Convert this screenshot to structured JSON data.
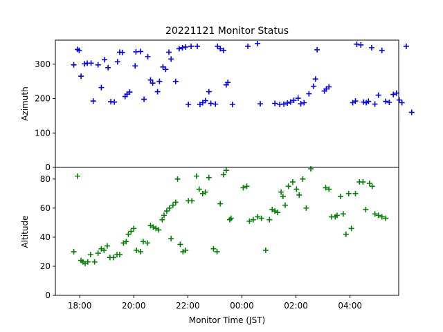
{
  "chart_data": {
    "type": "scatter",
    "title": "20221121 Monitor Status",
    "xlabel": "Monitor Time (JST)",
    "x_unit": "hours (JST, values past 24 are next day)",
    "xlim": [
      17.1,
      29.8
    ],
    "x_ticks": [
      {
        "value": 18,
        "label": "18:00"
      },
      {
        "value": 20,
        "label": "20:00"
      },
      {
        "value": 22,
        "label": "22:00"
      },
      {
        "value": 24,
        "label": "00:00"
      },
      {
        "value": 26,
        "label": "02:00"
      },
      {
        "value": 28,
        "label": "04:00"
      }
    ],
    "panels": [
      {
        "name": "azimuth",
        "ylabel": "Azimuth",
        "ylim": [
          0,
          370
        ],
        "y_ticks": [
          0,
          100,
          200,
          300
        ],
        "color": "#0000ff",
        "points": [
          [
            17.78,
            298
          ],
          [
            17.92,
            343
          ],
          [
            17.98,
            340
          ],
          [
            18.05,
            265
          ],
          [
            18.18,
            301
          ],
          [
            18.28,
            303
          ],
          [
            18.42,
            303
          ],
          [
            18.5,
            193
          ],
          [
            18.68,
            298
          ],
          [
            18.8,
            232
          ],
          [
            18.92,
            313
          ],
          [
            19.05,
            290
          ],
          [
            19.15,
            191
          ],
          [
            19.28,
            190
          ],
          [
            19.4,
            307
          ],
          [
            19.48,
            335
          ],
          [
            19.58,
            334
          ],
          [
            19.68,
            206
          ],
          [
            19.75,
            213
          ],
          [
            19.85,
            219
          ],
          [
            20.05,
            295
          ],
          [
            20.08,
            336
          ],
          [
            20.25,
            337
          ],
          [
            20.38,
            198
          ],
          [
            20.52,
            322
          ],
          [
            20.62,
            254
          ],
          [
            20.7,
            245
          ],
          [
            20.88,
            220
          ],
          [
            20.95,
            250
          ],
          [
            21.08,
            292
          ],
          [
            21.18,
            285
          ],
          [
            21.3,
            335
          ],
          [
            21.38,
            315
          ],
          [
            21.55,
            250
          ],
          [
            21.68,
            345
          ],
          [
            21.8,
            348
          ],
          [
            21.92,
            350
          ],
          [
            22.02,
            183
          ],
          [
            22.12,
            352
          ],
          [
            22.35,
            352
          ],
          [
            22.45,
            183
          ],
          [
            22.55,
            188
          ],
          [
            22.65,
            194
          ],
          [
            22.78,
            220
          ],
          [
            22.85,
            186
          ],
          [
            23.02,
            184
          ],
          [
            23.1,
            352
          ],
          [
            23.2,
            345
          ],
          [
            23.32,
            340
          ],
          [
            23.42,
            240
          ],
          [
            23.48,
            247
          ],
          [
            23.65,
            183
          ],
          [
            24.22,
            352
          ],
          [
            24.58,
            360
          ],
          [
            24.68,
            185
          ],
          [
            25.22,
            186
          ],
          [
            25.4,
            183
          ],
          [
            25.55,
            184
          ],
          [
            25.68,
            187
          ],
          [
            25.8,
            190
          ],
          [
            25.92,
            195
          ],
          [
            26.08,
            201
          ],
          [
            26.18,
            185
          ],
          [
            26.3,
            188
          ],
          [
            26.48,
            214
          ],
          [
            26.65,
            236
          ],
          [
            26.72,
            257
          ],
          [
            26.78,
            342
          ],
          [
            27.05,
            222
          ],
          [
            27.12,
            228
          ],
          [
            27.22,
            234
          ],
          [
            28.1,
            188
          ],
          [
            28.2,
            193
          ],
          [
            28.25,
            358
          ],
          [
            28.4,
            356
          ],
          [
            28.5,
            190
          ],
          [
            28.6,
            188
          ],
          [
            28.68,
            192
          ],
          [
            28.8,
            348
          ],
          [
            28.92,
            184
          ],
          [
            29.05,
            210
          ],
          [
            29.18,
            340
          ],
          [
            29.32,
            192
          ],
          [
            29.45,
            189
          ],
          [
            29.6,
            212
          ],
          [
            29.72,
            216
          ],
          [
            29.82,
            196
          ],
          [
            29.92,
            188
          ],
          [
            30.08,
            352
          ],
          [
            30.28,
            160
          ]
        ]
      },
      {
        "name": "altitude",
        "ylabel": "Altitude",
        "ylim": [
          0,
          88
        ],
        "y_ticks": [
          0,
          20,
          40,
          60,
          80
        ],
        "color": "#008000",
        "points": [
          [
            17.78,
            30
          ],
          [
            17.92,
            82
          ],
          [
            18.05,
            24
          ],
          [
            18.12,
            23
          ],
          [
            18.2,
            22
          ],
          [
            18.3,
            23
          ],
          [
            18.4,
            28
          ],
          [
            18.55,
            23
          ],
          [
            18.68,
            29
          ],
          [
            18.8,
            32
          ],
          [
            18.9,
            31
          ],
          [
            19.02,
            34
          ],
          [
            19.12,
            26
          ],
          [
            19.25,
            26
          ],
          [
            19.38,
            28
          ],
          [
            19.48,
            28
          ],
          [
            19.62,
            36
          ],
          [
            19.72,
            37
          ],
          [
            19.8,
            42
          ],
          [
            19.9,
            44
          ],
          [
            20.0,
            46
          ],
          [
            20.1,
            31
          ],
          [
            20.25,
            30
          ],
          [
            20.35,
            37
          ],
          [
            20.5,
            36
          ],
          [
            20.62,
            48
          ],
          [
            20.72,
            47
          ],
          [
            20.82,
            46
          ],
          [
            20.92,
            45
          ],
          [
            21.05,
            52
          ],
          [
            21.12,
            55
          ],
          [
            21.22,
            58
          ],
          [
            21.32,
            60
          ],
          [
            21.38,
            39
          ],
          [
            21.45,
            62
          ],
          [
            21.55,
            64
          ],
          [
            21.62,
            80
          ],
          [
            21.72,
            35
          ],
          [
            21.82,
            30
          ],
          [
            21.92,
            31
          ],
          [
            22.02,
            65
          ],
          [
            22.15,
            65
          ],
          [
            22.32,
            82
          ],
          [
            22.42,
            73
          ],
          [
            22.55,
            70
          ],
          [
            22.65,
            71
          ],
          [
            22.78,
            81
          ],
          [
            22.95,
            32
          ],
          [
            23.08,
            30
          ],
          [
            23.2,
            63
          ],
          [
            23.32,
            83
          ],
          [
            23.42,
            86
          ],
          [
            23.55,
            52
          ],
          [
            23.6,
            53
          ],
          [
            24.05,
            74
          ],
          [
            24.18,
            75
          ],
          [
            24.28,
            51
          ],
          [
            24.42,
            52
          ],
          [
            24.58,
            54
          ],
          [
            24.72,
            53
          ],
          [
            24.88,
            31
          ],
          [
            25.02,
            52
          ],
          [
            25.12,
            59
          ],
          [
            25.22,
            58
          ],
          [
            25.32,
            57
          ],
          [
            25.45,
            71
          ],
          [
            25.52,
            68
          ],
          [
            25.6,
            62
          ],
          [
            25.72,
            75
          ],
          [
            25.88,
            78
          ],
          [
            26.02,
            73
          ],
          [
            26.12,
            69
          ],
          [
            26.25,
            80
          ],
          [
            26.38,
            60
          ],
          [
            26.55,
            87
          ],
          [
            27.1,
            74
          ],
          [
            27.22,
            73
          ],
          [
            27.32,
            54
          ],
          [
            27.45,
            54
          ],
          [
            27.52,
            55
          ],
          [
            27.65,
            68
          ],
          [
            27.75,
            56
          ],
          [
            27.85,
            42
          ],
          [
            27.95,
            70
          ],
          [
            28.05,
            46
          ],
          [
            28.2,
            70
          ],
          [
            28.35,
            78
          ],
          [
            28.48,
            78
          ],
          [
            28.58,
            59
          ],
          [
            28.72,
            77
          ],
          [
            28.82,
            75
          ],
          [
            28.92,
            56
          ],
          [
            29.05,
            55
          ],
          [
            29.18,
            54
          ],
          [
            29.32,
            53
          ]
        ]
      }
    ]
  }
}
